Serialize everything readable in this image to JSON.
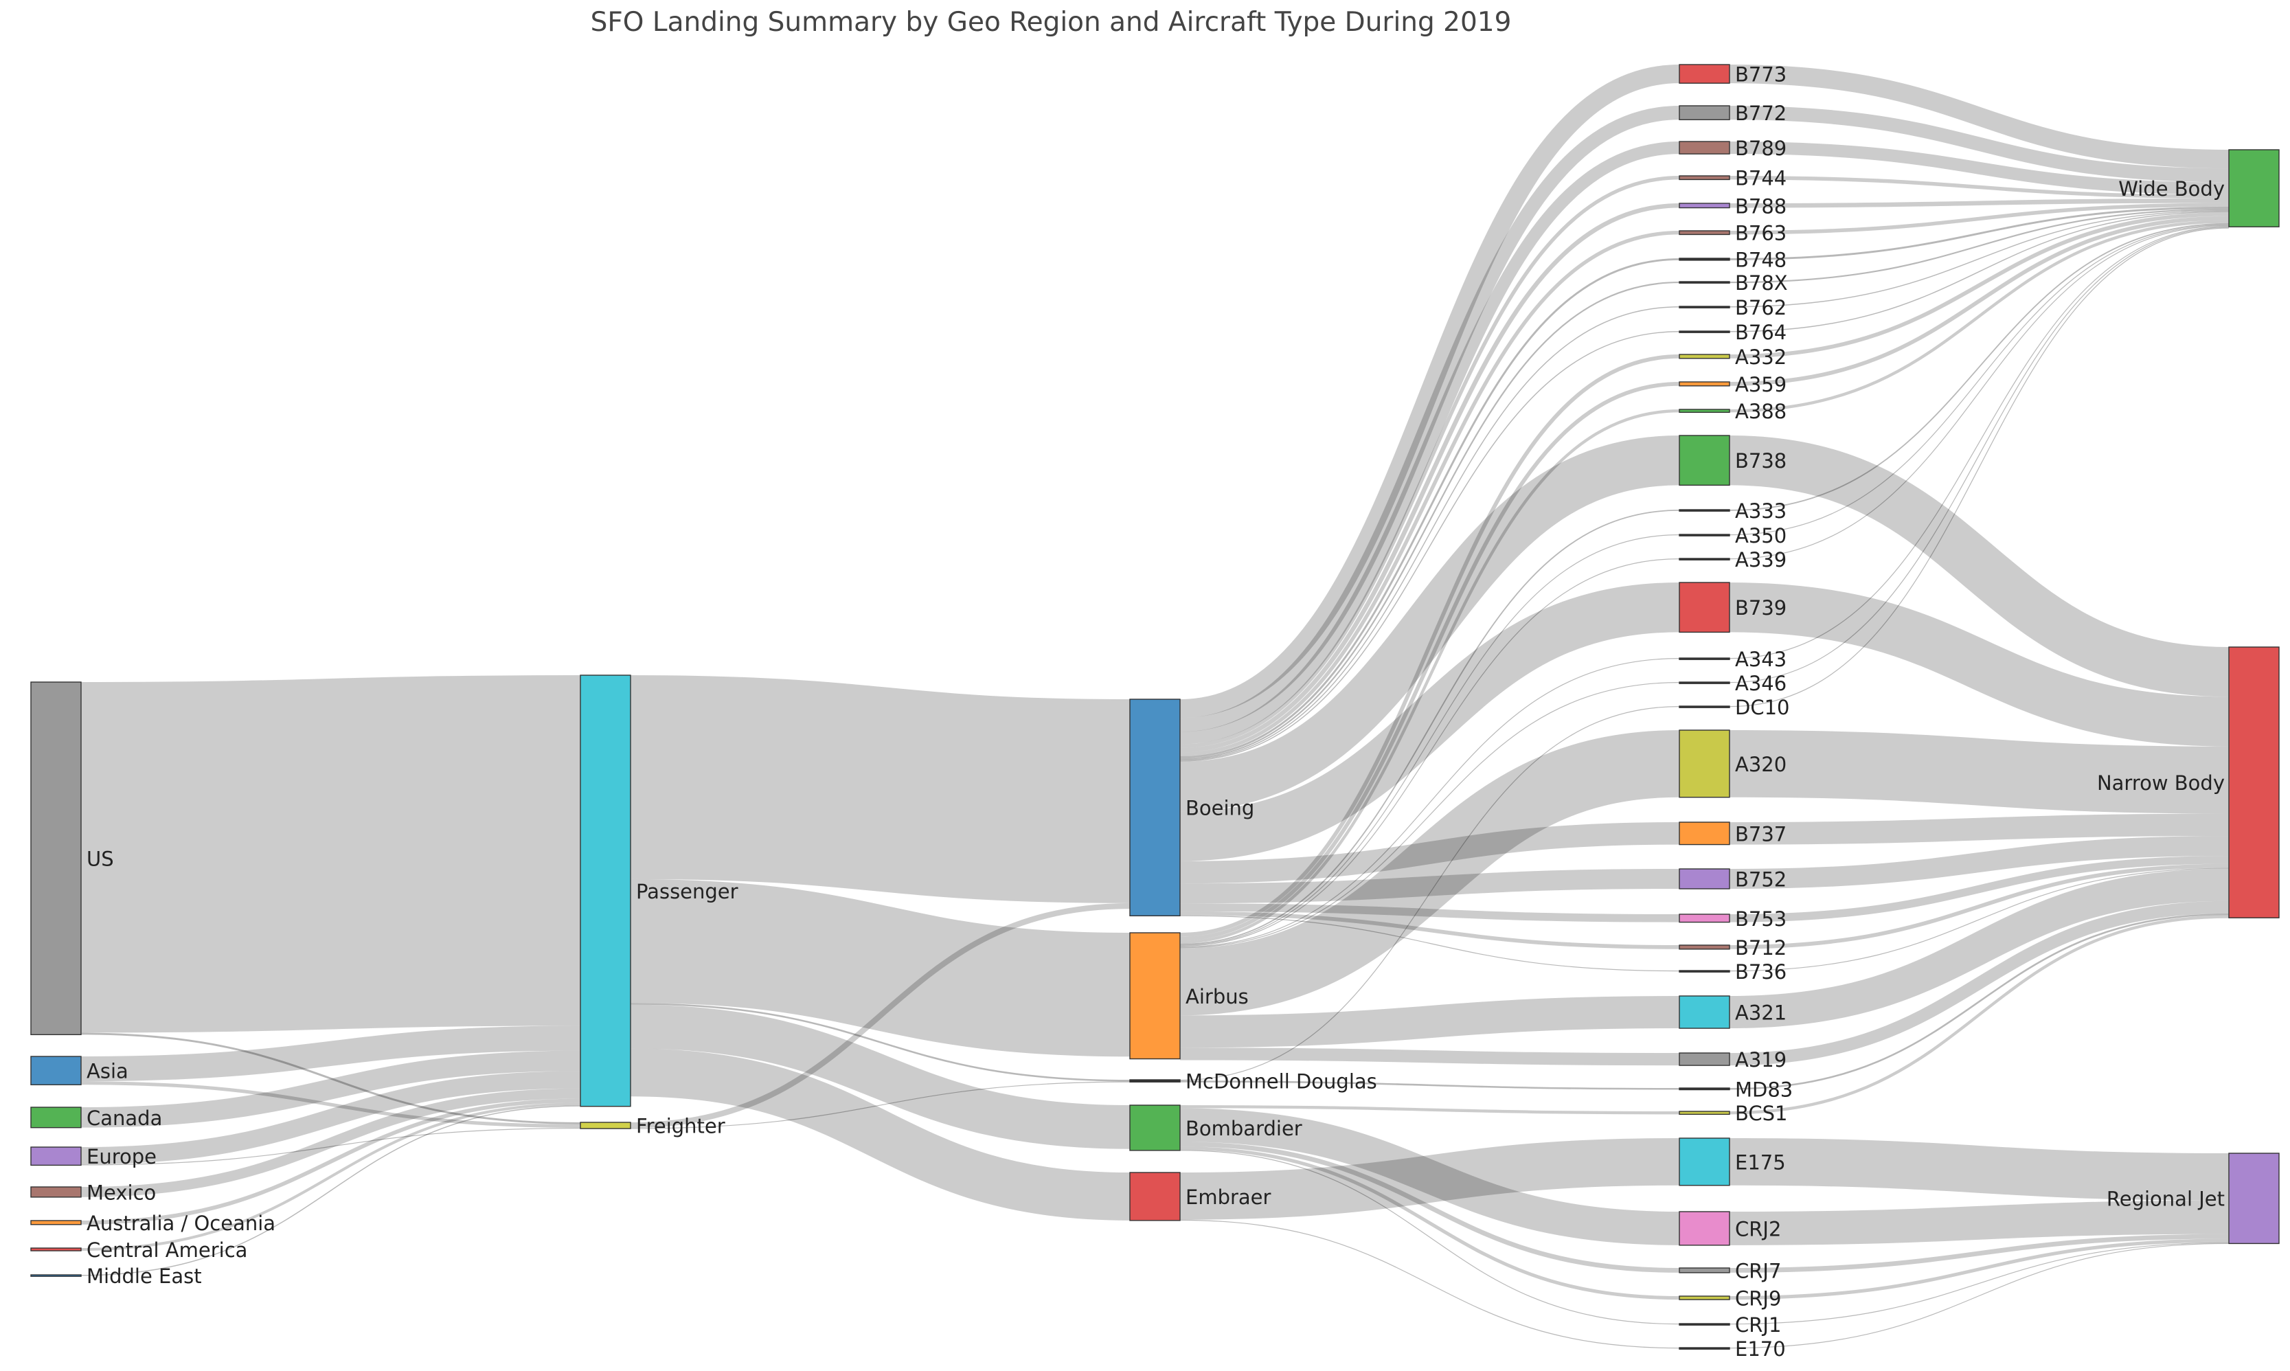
{
  "chart_data": {
    "type": "sankey",
    "title": "SFO Landing Summary by Geo Region and Aircraft Type During 2019",
    "units": "landings",
    "nodes": [
      {
        "id": "US",
        "label": "US",
        "color": "#999999"
      },
      {
        "id": "Asia",
        "label": "Asia",
        "color": "#4a90c4"
      },
      {
        "id": "Canada",
        "label": "Canada",
        "color": "#54b354"
      },
      {
        "id": "Europe",
        "label": "Europe",
        "color": "#a986cf"
      },
      {
        "id": "Mexico",
        "label": "Mexico",
        "color": "#a8766e"
      },
      {
        "id": "Australia / Oceania",
        "label": "Australia / Oceania",
        "color": "#ff9a3c"
      },
      {
        "id": "Central America",
        "label": "Central America",
        "color": "#e05252"
      },
      {
        "id": "Middle East",
        "label": "Middle East",
        "color": "#2d7fbf"
      },
      {
        "id": "Passenger",
        "label": "Passenger",
        "color": "#45c8d8"
      },
      {
        "id": "Freighter",
        "label": "Freighter",
        "color": "#d1d14a"
      },
      {
        "id": "Boeing",
        "label": "Boeing",
        "color": "#4a90c4"
      },
      {
        "id": "Airbus",
        "label": "Airbus",
        "color": "#ff9a3c"
      },
      {
        "id": "McDonnell Douglas",
        "label": "McDonnell Douglas",
        "color": "#333333"
      },
      {
        "id": "Bombardier",
        "label": "Bombardier",
        "color": "#54b354"
      },
      {
        "id": "Embraer",
        "label": "Embraer",
        "color": "#e05252"
      },
      {
        "id": "B773",
        "label": "B773",
        "color": "#e05252"
      },
      {
        "id": "B772",
        "label": "B772",
        "color": "#999999"
      },
      {
        "id": "B789",
        "label": "B789",
        "color": "#a8766e"
      },
      {
        "id": "B744",
        "label": "B744",
        "color": "#a8766e"
      },
      {
        "id": "B788",
        "label": "B788",
        "color": "#a986cf"
      },
      {
        "id": "B763",
        "label": "B763",
        "color": "#a8766e"
      },
      {
        "id": "B748",
        "label": "B748",
        "color": "#333333"
      },
      {
        "id": "B78X",
        "label": "B78X",
        "color": "#333333"
      },
      {
        "id": "B762",
        "label": "B762",
        "color": "#333333"
      },
      {
        "id": "B764",
        "label": "B764",
        "color": "#333333"
      },
      {
        "id": "A332",
        "label": "A332",
        "color": "#c9c94a"
      },
      {
        "id": "A359",
        "label": "A359",
        "color": "#ff9a3c"
      },
      {
        "id": "A388",
        "label": "A388",
        "color": "#54b354"
      },
      {
        "id": "B738",
        "label": "B738",
        "color": "#54b354"
      },
      {
        "id": "A333",
        "label": "A333",
        "color": "#333333"
      },
      {
        "id": "A350",
        "label": "A350",
        "color": "#333333"
      },
      {
        "id": "A339",
        "label": "A339",
        "color": "#333333"
      },
      {
        "id": "B739",
        "label": "B739",
        "color": "#e05252"
      },
      {
        "id": "A343",
        "label": "A343",
        "color": "#333333"
      },
      {
        "id": "A346",
        "label": "A346",
        "color": "#333333"
      },
      {
        "id": "DC10",
        "label": "DC10",
        "color": "#333333"
      },
      {
        "id": "A320",
        "label": "A320",
        "color": "#c9c94a"
      },
      {
        "id": "B737",
        "label": "B737",
        "color": "#ff9a3c"
      },
      {
        "id": "B752",
        "label": "B752",
        "color": "#a986cf"
      },
      {
        "id": "B753",
        "label": "B753",
        "color": "#e88ccc"
      },
      {
        "id": "B712",
        "label": "B712",
        "color": "#a8766e"
      },
      {
        "id": "B736",
        "label": "B736",
        "color": "#333333"
      },
      {
        "id": "A321",
        "label": "A321",
        "color": "#45c8d8"
      },
      {
        "id": "A319",
        "label": "A319",
        "color": "#999999"
      },
      {
        "id": "MD83",
        "label": "MD83",
        "color": "#333333"
      },
      {
        "id": "BCS1",
        "label": "BCS1",
        "color": "#c9c94a"
      },
      {
        "id": "E175",
        "label": "E175",
        "color": "#45c8d8"
      },
      {
        "id": "CRJ2",
        "label": "CRJ2",
        "color": "#e88ccc"
      },
      {
        "id": "CRJ7",
        "label": "CRJ7",
        "color": "#999999"
      },
      {
        "id": "CRJ9",
        "label": "CRJ9",
        "color": "#c9c94a"
      },
      {
        "id": "CRJ1",
        "label": "CRJ1",
        "color": "#333333"
      },
      {
        "id": "E170",
        "label": "E170",
        "color": "#333333"
      },
      {
        "id": "Wide Body",
        "label": "Wide Body",
        "color": "#54b354"
      },
      {
        "id": "Narrow Body",
        "label": "Narrow Body",
        "color": "#e05252"
      },
      {
        "id": "Regional Jet",
        "label": "Regional Jet",
        "color": "#a986cf"
      }
    ],
    "links": [
      {
        "source": "US",
        "target": "Passenger",
        "value": 141000
      },
      {
        "source": "US",
        "target": "Freighter",
        "value": 800
      },
      {
        "source": "Asia",
        "target": "Passenger",
        "value": 10000
      },
      {
        "source": "Asia",
        "target": "Freighter",
        "value": 1400
      },
      {
        "source": "Canada",
        "target": "Passenger",
        "value": 8200
      },
      {
        "source": "Europe",
        "target": "Passenger",
        "value": 7000
      },
      {
        "source": "Europe",
        "target": "Freighter",
        "value": 300
      },
      {
        "source": "Mexico",
        "target": "Passenger",
        "value": 4100
      },
      {
        "source": "Australia / Oceania",
        "target": "Passenger",
        "value": 1600
      },
      {
        "source": "Central America",
        "target": "Passenger",
        "value": 1100
      },
      {
        "source": "Middle East",
        "target": "Passenger",
        "value": 400
      },
      {
        "source": "Passenger",
        "target": "Boeing",
        "value": 82000
      },
      {
        "source": "Passenger",
        "target": "Airbus",
        "value": 49800
      },
      {
        "source": "Passenger",
        "target": "McDonnell Douglas",
        "value": 700
      },
      {
        "source": "Passenger",
        "target": "Bombardier",
        "value": 17600
      },
      {
        "source": "Passenger",
        "target": "Embraer",
        "value": 19300
      },
      {
        "source": "Freighter",
        "target": "Boeing",
        "value": 2300
      },
      {
        "source": "Freighter",
        "target": "McDonnell Douglas",
        "value": 200
      },
      {
        "source": "Boeing",
        "target": "B773",
        "value": 7500
      },
      {
        "source": "Boeing",
        "target": "B772",
        "value": 5600
      },
      {
        "source": "Boeing",
        "target": "B789",
        "value": 5000
      },
      {
        "source": "Boeing",
        "target": "B744",
        "value": 1500
      },
      {
        "source": "Boeing",
        "target": "B788",
        "value": 1800
      },
      {
        "source": "Boeing",
        "target": "B763",
        "value": 1500
      },
      {
        "source": "Boeing",
        "target": "B748",
        "value": 800
      },
      {
        "source": "Boeing",
        "target": "B78X",
        "value": 600
      },
      {
        "source": "Boeing",
        "target": "B762",
        "value": 400
      },
      {
        "source": "Boeing",
        "target": "B764",
        "value": 400
      },
      {
        "source": "Boeing",
        "target": "B738",
        "value": 20000
      },
      {
        "source": "Boeing",
        "target": "B739",
        "value": 20000
      },
      {
        "source": "Boeing",
        "target": "B737",
        "value": 9000
      },
      {
        "source": "Boeing",
        "target": "B752",
        "value": 8000
      },
      {
        "source": "Boeing",
        "target": "B753",
        "value": 3200
      },
      {
        "source": "Boeing",
        "target": "B712",
        "value": 1600
      },
      {
        "source": "Boeing",
        "target": "B736",
        "value": 200
      },
      {
        "source": "Airbus",
        "target": "A332",
        "value": 1600
      },
      {
        "source": "Airbus",
        "target": "A359",
        "value": 1600
      },
      {
        "source": "Airbus",
        "target": "A388",
        "value": 1200
      },
      {
        "source": "Airbus",
        "target": "A333",
        "value": 500
      },
      {
        "source": "Airbus",
        "target": "A350",
        "value": 200
      },
      {
        "source": "Airbus",
        "target": "A339",
        "value": 200
      },
      {
        "source": "Airbus",
        "target": "A343",
        "value": 200
      },
      {
        "source": "Airbus",
        "target": "A346",
        "value": 200
      },
      {
        "source": "Airbus",
        "target": "A320",
        "value": 27000
      },
      {
        "source": "Airbus",
        "target": "A321",
        "value": 13000
      },
      {
        "source": "Airbus",
        "target": "A319",
        "value": 5000
      },
      {
        "source": "McDonnell Douglas",
        "target": "DC10",
        "value": 200
      },
      {
        "source": "McDonnell Douglas",
        "target": "MD83",
        "value": 700
      },
      {
        "source": "Bombardier",
        "target": "BCS1",
        "value": 1200
      },
      {
        "source": "Bombardier",
        "target": "CRJ2",
        "value": 13500
      },
      {
        "source": "Bombardier",
        "target": "CRJ7",
        "value": 1900
      },
      {
        "source": "Bombardier",
        "target": "CRJ9",
        "value": 1400
      },
      {
        "source": "Bombardier",
        "target": "CRJ1",
        "value": 200
      },
      {
        "source": "Embraer",
        "target": "E175",
        "value": 19000
      },
      {
        "source": "Embraer",
        "target": "E170",
        "value": 300
      },
      {
        "source": "B773",
        "target": "Wide Body",
        "value": 7500
      },
      {
        "source": "B772",
        "target": "Wide Body",
        "value": 5600
      },
      {
        "source": "B789",
        "target": "Wide Body",
        "value": 5000
      },
      {
        "source": "B744",
        "target": "Wide Body",
        "value": 1500
      },
      {
        "source": "B788",
        "target": "Wide Body",
        "value": 1800
      },
      {
        "source": "B763",
        "target": "Wide Body",
        "value": 1500
      },
      {
        "source": "B748",
        "target": "Wide Body",
        "value": 800
      },
      {
        "source": "B78X",
        "target": "Wide Body",
        "value": 600
      },
      {
        "source": "B762",
        "target": "Wide Body",
        "value": 400
      },
      {
        "source": "B764",
        "target": "Wide Body",
        "value": 400
      },
      {
        "source": "A332",
        "target": "Wide Body",
        "value": 1600
      },
      {
        "source": "A359",
        "target": "Wide Body",
        "value": 1600
      },
      {
        "source": "A388",
        "target": "Wide Body",
        "value": 1200
      },
      {
        "source": "A333",
        "target": "Wide Body",
        "value": 500
      },
      {
        "source": "A350",
        "target": "Wide Body",
        "value": 200
      },
      {
        "source": "A339",
        "target": "Wide Body",
        "value": 200
      },
      {
        "source": "A343",
        "target": "Wide Body",
        "value": 200
      },
      {
        "source": "A346",
        "target": "Wide Body",
        "value": 200
      },
      {
        "source": "DC10",
        "target": "Wide Body",
        "value": 200
      },
      {
        "source": "B738",
        "target": "Narrow Body",
        "value": 20000
      },
      {
        "source": "B739",
        "target": "Narrow Body",
        "value": 20000
      },
      {
        "source": "A320",
        "target": "Narrow Body",
        "value": 27000
      },
      {
        "source": "B737",
        "target": "Narrow Body",
        "value": 9000
      },
      {
        "source": "B752",
        "target": "Narrow Body",
        "value": 8000
      },
      {
        "source": "B753",
        "target": "Narrow Body",
        "value": 3200
      },
      {
        "source": "B712",
        "target": "Narrow Body",
        "value": 1600
      },
      {
        "source": "B736",
        "target": "Narrow Body",
        "value": 200
      },
      {
        "source": "A321",
        "target": "Narrow Body",
        "value": 13000
      },
      {
        "source": "A319",
        "target": "Narrow Body",
        "value": 5000
      },
      {
        "source": "MD83",
        "target": "Narrow Body",
        "value": 700
      },
      {
        "source": "BCS1",
        "target": "Narrow Body",
        "value": 1200
      },
      {
        "source": "E175",
        "target": "Regional Jet",
        "value": 19000
      },
      {
        "source": "CRJ2",
        "target": "Regional Jet",
        "value": 13500
      },
      {
        "source": "CRJ7",
        "target": "Regional Jet",
        "value": 1900
      },
      {
        "source": "CRJ9",
        "target": "Regional Jet",
        "value": 1400
      },
      {
        "source": "CRJ1",
        "target": "Regional Jet",
        "value": 200
      },
      {
        "source": "E170",
        "target": "Regional Jet",
        "value": 300
      }
    ]
  }
}
